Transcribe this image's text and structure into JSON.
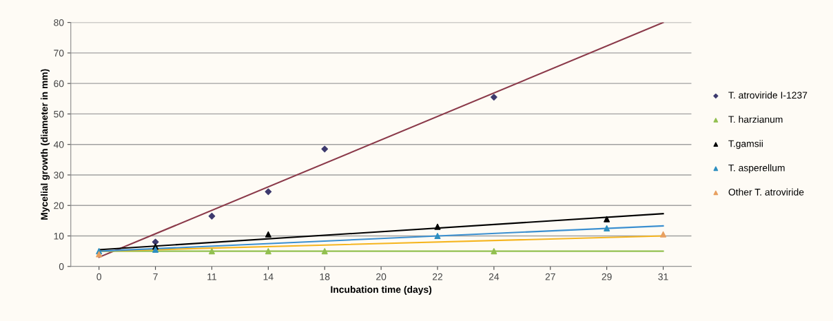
{
  "chart_data": {
    "type": "scatter",
    "xlabel": "Incubation time (days)",
    "ylabel": "Mycelial growth (diameter in mm)",
    "categories": [
      "0",
      "7",
      "11",
      "14",
      "18",
      "20",
      "22",
      "24",
      "27",
      "29",
      "31"
    ],
    "ylim": [
      0,
      80
    ],
    "yticks": [
      0,
      10,
      20,
      30,
      40,
      50,
      60,
      70,
      80
    ],
    "grid": "y",
    "legend": "right",
    "series": [
      {
        "name": "T. atroviride I-1237",
        "color": "#3d3a6e",
        "marker": "diamond",
        "values": [
          null,
          8,
          16.5,
          24.5,
          38.5,
          null,
          null,
          55.5,
          null,
          null,
          null
        ]
      },
      {
        "name": "T. harzianum",
        "color": "#92c050",
        "marker": "triangle",
        "values": [
          null,
          null,
          5,
          5,
          5,
          null,
          null,
          5,
          null,
          null,
          null
        ]
      },
      {
        "name": "T.gamsii",
        "color": "#000000",
        "marker": "triangle",
        "values": [
          null,
          6.5,
          null,
          10.5,
          null,
          null,
          13,
          null,
          null,
          15.5,
          null
        ]
      },
      {
        "name": "T. asperellum",
        "color": "#2e8fc0",
        "marker": "triangle",
        "values": [
          5,
          5.5,
          null,
          null,
          null,
          null,
          10,
          null,
          null,
          12.5,
          null
        ]
      },
      {
        "name": "Other T. atroviride",
        "color": "#e8a060",
        "marker": "triangle",
        "values": [
          4,
          null,
          null,
          null,
          null,
          null,
          null,
          null,
          null,
          null,
          10.5
        ]
      },
      {
        "type": "line",
        "color": "#8b3a4a",
        "values": [
          3,
          null,
          null,
          null,
          null,
          null,
          null,
          null,
          null,
          null,
          80
        ]
      },
      {
        "type": "line",
        "color": "#92c050",
        "values": [
          5,
          null,
          null,
          null,
          null,
          null,
          null,
          null,
          null,
          null,
          5
        ]
      },
      {
        "type": "line",
        "color": "#f5b520",
        "values": [
          5,
          null,
          null,
          null,
          null,
          null,
          null,
          null,
          null,
          null,
          10
        ]
      },
      {
        "type": "line",
        "color": "#3a8fd0",
        "values": [
          5,
          null,
          null,
          null,
          null,
          null,
          null,
          null,
          null,
          null,
          13.3
        ]
      },
      {
        "type": "line",
        "color": "#000000",
        "values": [
          5.5,
          null,
          null,
          null,
          null,
          null,
          null,
          null,
          null,
          null,
          17.3
        ]
      }
    ]
  }
}
